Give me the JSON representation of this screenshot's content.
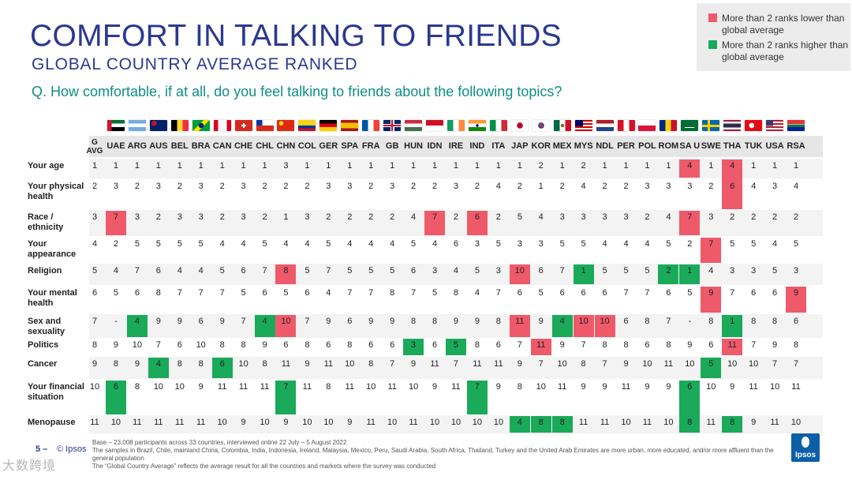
{
  "header": {
    "title": "COMFORT IN TALKING TO FRIENDS",
    "subtitle": "GLOBAL COUNTRY AVERAGE RANKED",
    "question": "Q. How comfortable, if at all, do you feel talking to friends about the following topics?"
  },
  "legend": {
    "lower": "More than 2 ranks lower than global average",
    "higher": "More than 2 ranks higher than global average",
    "colors": {
      "lower": "#ef5a6b",
      "higher": "#1aaa5a"
    }
  },
  "footer": {
    "page": "5 –",
    "brand": "© Ipsos",
    "base_lines": [
      "Base – 23,008 participants across 33 countries, interviewed online 22 July – 5 August 2022",
      "The samples in Brazil, Chile, mainland China, Colombia, India, Indonesia, Ireland, Malaysia, Mexico, Peru, Saudi Arabia, South Africa, Thailand, Turkey and the United Arab Emirates are more urban, more educated, and/or more affluent than the general population",
      "The “Global Country Average” reflects the average result for all the countries and markets where the survey was conducted"
    ],
    "logo": "Ipsos",
    "watermark": "大数跨境"
  },
  "chart_data": {
    "type": "table",
    "columns": [
      "G AVG",
      "UAE",
      "ARG",
      "AUS",
      "BEL",
      "BRA",
      "CAN",
      "CHE",
      "CHL",
      "CHN",
      "COL",
      "GER",
      "SPA",
      "FRA",
      "GB",
      "HUN",
      "IDN",
      "IRE",
      "IND",
      "ITA",
      "JAP",
      "KOR",
      "MEX",
      "MYS",
      "NDL",
      "PER",
      "POL",
      "ROM",
      "SA U",
      "SWE",
      "THA",
      "TUK",
      "USA",
      "RSA"
    ],
    "rows": [
      {
        "label": "Your age",
        "values": [
          "1",
          "1",
          "1",
          "1",
          "1",
          "1",
          "1",
          "1",
          "1",
          "3",
          "1",
          "1",
          "1",
          "1",
          "1",
          "1",
          "1",
          "1",
          "1",
          "1",
          "1",
          "2",
          "1",
          "2",
          "1",
          "1",
          "1",
          "1",
          "4",
          "1",
          "4",
          "1",
          "1",
          "1"
        ],
        "highlight": [
          "",
          "",
          "",
          "",
          "",
          "",
          "",
          "",
          "",
          "",
          "",
          "",
          "",
          "",
          "",
          "",
          "",
          "",
          "",
          "",
          "",
          "",
          "",
          "",
          "",
          "",
          "",
          "",
          "L",
          "",
          "L",
          "",
          "",
          ""
        ]
      },
      {
        "label": "Your physical health",
        "values": [
          "2",
          "3",
          "2",
          "3",
          "2",
          "3",
          "2",
          "3",
          "2",
          "2",
          "2",
          "3",
          "3",
          "2",
          "3",
          "2",
          "2",
          "3",
          "2",
          "4",
          "2",
          "1",
          "2",
          "4",
          "2",
          "2",
          "3",
          "3",
          "3",
          "2",
          "6",
          "4",
          "3",
          "4"
        ],
        "highlight": [
          "",
          "",
          "",
          "",
          "",
          "",
          "",
          "",
          "",
          "",
          "",
          "",
          "",
          "",
          "",
          "",
          "",
          "",
          "",
          "",
          "",
          "",
          "",
          "",
          "",
          "",
          "",
          "",
          "",
          "",
          "L",
          "",
          "",
          ""
        ]
      },
      {
        "label": "Race / ethnicity",
        "values": [
          "3",
          "7",
          "3",
          "2",
          "3",
          "3",
          "2",
          "3",
          "2",
          "1",
          "3",
          "2",
          "2",
          "2",
          "2",
          "4",
          "7",
          "2",
          "6",
          "2",
          "5",
          "4",
          "3",
          "3",
          "3",
          "3",
          "2",
          "4",
          "7",
          "3",
          "2",
          "2",
          "2",
          "2"
        ],
        "highlight": [
          "",
          "L",
          "",
          "",
          "",
          "",
          "",
          "",
          "",
          "",
          "",
          "",
          "",
          "",
          "",
          "",
          "L",
          "",
          "L",
          "",
          "",
          "",
          "",
          "",
          "",
          "",
          "",
          "",
          "L",
          "",
          "",
          "",
          "",
          ""
        ]
      },
      {
        "label": "Your appearance",
        "values": [
          "4",
          "2",
          "5",
          "5",
          "5",
          "5",
          "4",
          "4",
          "5",
          "4",
          "4",
          "5",
          "4",
          "4",
          "4",
          "5",
          "4",
          "6",
          "3",
          "5",
          "3",
          "3",
          "5",
          "5",
          "4",
          "4",
          "4",
          "5",
          "2",
          "7",
          "5",
          "5",
          "4",
          "5"
        ],
        "highlight": [
          "",
          "",
          "",
          "",
          "",
          "",
          "",
          "",
          "",
          "",
          "",
          "",
          "",
          "",
          "",
          "",
          "",
          "",
          "",
          "",
          "",
          "",
          "",
          "",
          "",
          "",
          "",
          "",
          "",
          "L",
          "",
          "",
          "",
          ""
        ]
      },
      {
        "label": "Religion",
        "values": [
          "5",
          "4",
          "7",
          "6",
          "4",
          "4",
          "5",
          "6",
          "7",
          "8",
          "5",
          "7",
          "5",
          "5",
          "5",
          "6",
          "3",
          "4",
          "5",
          "3",
          "10",
          "6",
          "7",
          "1",
          "5",
          "5",
          "5",
          "2",
          "1",
          "4",
          "3",
          "3",
          "5",
          "3"
        ],
        "highlight": [
          "",
          "",
          "",
          "",
          "",
          "",
          "",
          "",
          "",
          "L",
          "",
          "",
          "",
          "",
          "",
          "",
          "",
          "",
          "",
          "",
          "L",
          "",
          "",
          "H",
          "",
          "",
          "",
          "H",
          "H",
          "",
          "",
          "",
          "",
          ""
        ]
      },
      {
        "label": "Your mental health",
        "values": [
          "6",
          "5",
          "6",
          "8",
          "7",
          "7",
          "7",
          "5",
          "6",
          "5",
          "6",
          "4",
          "7",
          "7",
          "8",
          "7",
          "5",
          "8",
          "4",
          "7",
          "6",
          "5",
          "6",
          "6",
          "6",
          "7",
          "7",
          "6",
          "5",
          "9",
          "7",
          "6",
          "6",
          "9"
        ],
        "highlight": [
          "",
          "",
          "",
          "",
          "",
          "",
          "",
          "",
          "",
          "",
          "",
          "",
          "",
          "",
          "",
          "",
          "",
          "",
          "",
          "",
          "",
          "",
          "",
          "",
          "",
          "",
          "",
          "",
          "",
          "L",
          "",
          "",
          "",
          "L"
        ]
      },
      {
        "label": "Sex and sexuality",
        "values": [
          "7",
          "-",
          "4",
          "9",
          "9",
          "6",
          "9",
          "7",
          "4",
          "10",
          "7",
          "9",
          "6",
          "9",
          "9",
          "8",
          "8",
          "9",
          "9",
          "8",
          "11",
          "9",
          "4",
          "10",
          "10",
          "6",
          "8",
          "7",
          "-",
          "8",
          "1",
          "8",
          "8",
          "6"
        ],
        "highlight": [
          "",
          "",
          "H",
          "",
          "",
          "",
          "",
          "",
          "H",
          "L",
          "",
          "",
          "",
          "",
          "",
          "",
          "",
          "",
          "",
          "",
          "L",
          "",
          "H",
          "L",
          "L",
          "",
          "",
          "",
          "",
          "",
          "H",
          "",
          "",
          ""
        ]
      },
      {
        "label": "Politics",
        "values": [
          "8",
          "9",
          "10",
          "7",
          "6",
          "10",
          "8",
          "8",
          "9",
          "6",
          "8",
          "6",
          "8",
          "6",
          "6",
          "3",
          "6",
          "5",
          "8",
          "6",
          "7",
          "11",
          "9",
          "7",
          "8",
          "8",
          "6",
          "8",
          "9",
          "6",
          "11",
          "7",
          "9",
          "8"
        ],
        "highlight": [
          "",
          "",
          "",
          "",
          "",
          "",
          "",
          "",
          "",
          "",
          "",
          "",
          "",
          "",
          "",
          "H",
          "",
          "H",
          "",
          "",
          "",
          "L",
          "",
          "",
          "",
          "",
          "",
          "",
          "",
          "",
          "L",
          "",
          "",
          ""
        ]
      },
      {
        "label": "Cancer",
        "values": [
          "9",
          "8",
          "9",
          "4",
          "8",
          "8",
          "6",
          "10",
          "8",
          "11",
          "9",
          "11",
          "10",
          "8",
          "7",
          "9",
          "11",
          "7",
          "11",
          "11",
          "9",
          "7",
          "10",
          "8",
          "7",
          "9",
          "10",
          "11",
          "10",
          "5",
          "10",
          "10",
          "7",
          "7"
        ],
        "highlight": [
          "",
          "",
          "",
          "H",
          "",
          "",
          "H",
          "",
          "",
          "",
          "",
          "",
          "",
          "",
          "",
          "",
          "",
          "",
          "",
          "",
          "",
          "",
          "",
          "",
          "",
          "",
          "",
          "",
          "",
          "H",
          "",
          "",
          "",
          ""
        ]
      },
      {
        "label": "Your financial situation",
        "values": [
          "10",
          "6",
          "8",
          "10",
          "10",
          "9",
          "11",
          "11",
          "11",
          "7",
          "11",
          "8",
          "11",
          "10",
          "11",
          "10",
          "9",
          "11",
          "7",
          "9",
          "8",
          "10",
          "11",
          "9",
          "9",
          "11",
          "9",
          "9",
          "6",
          "10",
          "9",
          "11",
          "10",
          "11"
        ],
        "highlight": [
          "",
          "H",
          "",
          "",
          "",
          "",
          "",
          "",
          "",
          "H",
          "",
          "",
          "",
          "",
          "",
          "",
          "",
          "",
          "H",
          "",
          "",
          "",
          "",
          "",
          "",
          "",
          "",
          "",
          "H",
          "",
          "",
          "",
          "",
          ""
        ]
      },
      {
        "label": "Menopause",
        "values": [
          "11",
          "10",
          "11",
          "11",
          "11",
          "11",
          "10",
          "9",
          "10",
          "9",
          "10",
          "10",
          "9",
          "11",
          "10",
          "11",
          "10",
          "10",
          "10",
          "10",
          "4",
          "8",
          "8",
          "11",
          "11",
          "10",
          "11",
          "10",
          "8",
          "11",
          "8",
          "9",
          "11",
          "10"
        ],
        "highlight": [
          "",
          "",
          "",
          "",
          "",
          "",
          "",
          "",
          "",
          "",
          "",
          "",
          "",
          "",
          "",
          "",
          "",
          "",
          "",
          "",
          "H",
          "H",
          "H",
          "",
          "",
          "",
          "",
          "",
          "H",
          "",
          "H",
          "",
          "",
          ""
        ]
      }
    ]
  }
}
